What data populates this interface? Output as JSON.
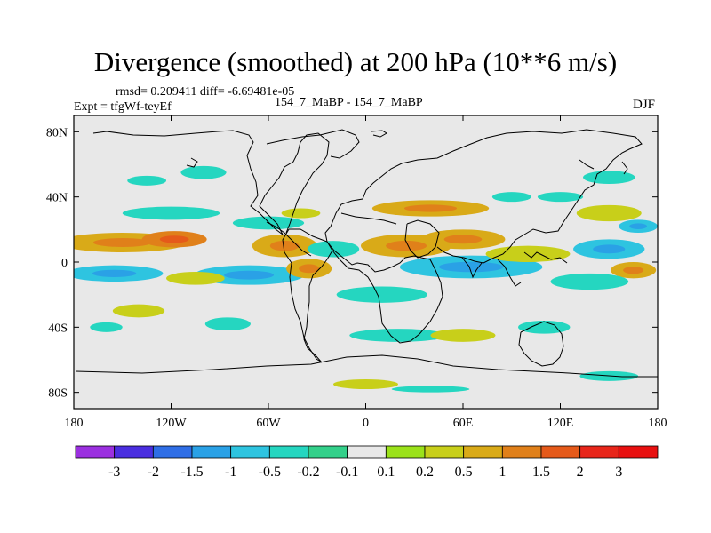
{
  "title": "Divergence (smoothed) at 200 hPa (10**6 m/s)",
  "stats": "rmsd= 0.209411 diff= -6.69481e-05",
  "experiment": "Expt = tfgWf-teyEf",
  "case_label": "154_7_MaBP - 154_7_MaBP",
  "season": "DJF",
  "chart_data": {
    "type": "heatmap",
    "projection": "cylindrical equidistant",
    "x_ticks": [
      {
        "value": -180,
        "label": "180"
      },
      {
        "value": -120,
        "label": "120W"
      },
      {
        "value": -60,
        "label": "60W"
      },
      {
        "value": 0,
        "label": "0"
      },
      {
        "value": 60,
        "label": "60E"
      },
      {
        "value": 120,
        "label": "120E"
      },
      {
        "value": 180,
        "label": "180"
      }
    ],
    "y_ticks": [
      {
        "value": 80,
        "label": "80N"
      },
      {
        "value": 40,
        "label": "40N"
      },
      {
        "value": 0,
        "label": "0"
      },
      {
        "value": -40,
        "label": "40S"
      },
      {
        "value": -80,
        "label": "80S"
      }
    ],
    "xlim": [
      -180,
      180
    ],
    "ylim": [
      -90,
      90
    ],
    "colorbar": {
      "boundaries": [
        "-3",
        "-2",
        "-1.5",
        "-1",
        "-0.5",
        "-0.2",
        "-0.1",
        "0.1",
        "0.2",
        "0.5",
        "1",
        "1.5",
        "2",
        "3"
      ],
      "colors": [
        "#9b30e0",
        "#4a2ee0",
        "#2f6ee6",
        "#2aa1e6",
        "#2ec4e0",
        "#25d6c0",
        "#33d08a",
        "#e8e8e8",
        "#9be21a",
        "#c8cf1a",
        "#d9aa18",
        "#e0801a",
        "#e55a1a",
        "#e8261a",
        "#e81010"
      ]
    },
    "features": [
      {
        "lon": -150,
        "lat": 12,
        "rx": 40,
        "ry": 6,
        "level": 10
      },
      {
        "lon": -118,
        "lat": 14,
        "rx": 20,
        "ry": 5,
        "level": 11
      },
      {
        "lon": -155,
        "lat": -7,
        "rx": 30,
        "ry": 5,
        "level": 4
      },
      {
        "lon": -72,
        "lat": -8,
        "rx": 34,
        "ry": 6,
        "level": 4
      },
      {
        "lon": -50,
        "lat": 10,
        "rx": 20,
        "ry": 7,
        "level": 10
      },
      {
        "lon": -105,
        "lat": -10,
        "rx": 18,
        "ry": 4,
        "level": 9
      },
      {
        "lon": -35,
        "lat": -4,
        "rx": 14,
        "ry": 6,
        "level": 10
      },
      {
        "lon": 25,
        "lat": 10,
        "rx": 28,
        "ry": 7,
        "level": 10
      },
      {
        "lon": 60,
        "lat": 14,
        "rx": 26,
        "ry": 6,
        "level": 10
      },
      {
        "lon": 65,
        "lat": -3,
        "rx": 44,
        "ry": 7,
        "level": 4
      },
      {
        "lon": 10,
        "lat": -20,
        "rx": 28,
        "ry": 5,
        "level": 5
      },
      {
        "lon": -20,
        "lat": 8,
        "rx": 16,
        "ry": 5,
        "level": 5
      },
      {
        "lon": 40,
        "lat": 33,
        "rx": 36,
        "ry": 5,
        "level": 10
      },
      {
        "lon": -60,
        "lat": 24,
        "rx": 22,
        "ry": 4,
        "level": 5
      },
      {
        "lon": -40,
        "lat": 30,
        "rx": 12,
        "ry": 3,
        "level": 9
      },
      {
        "lon": -120,
        "lat": 30,
        "rx": 30,
        "ry": 4,
        "level": 5
      },
      {
        "lon": 100,
        "lat": 5,
        "rx": 26,
        "ry": 5,
        "level": 9
      },
      {
        "lon": 150,
        "lat": 8,
        "rx": 22,
        "ry": 6,
        "level": 4
      },
      {
        "lon": 165,
        "lat": -5,
        "rx": 14,
        "ry": 5,
        "level": 10
      },
      {
        "lon": 150,
        "lat": 30,
        "rx": 20,
        "ry": 5,
        "level": 9
      },
      {
        "lon": 138,
        "lat": -12,
        "rx": 24,
        "ry": 5,
        "level": 5
      },
      {
        "lon": 168,
        "lat": 22,
        "rx": 12,
        "ry": 4,
        "level": 4
      },
      {
        "lon": -100,
        "lat": 55,
        "rx": 14,
        "ry": 4,
        "level": 5
      },
      {
        "lon": -135,
        "lat": 50,
        "rx": 12,
        "ry": 3,
        "level": 5
      },
      {
        "lon": 150,
        "lat": 52,
        "rx": 16,
        "ry": 4,
        "level": 5
      },
      {
        "lon": 90,
        "lat": 40,
        "rx": 12,
        "ry": 3,
        "level": 5
      },
      {
        "lon": 120,
        "lat": 40,
        "rx": 14,
        "ry": 3,
        "level": 5
      },
      {
        "lon": -140,
        "lat": -30,
        "rx": 16,
        "ry": 4,
        "level": 9
      },
      {
        "lon": -85,
        "lat": -38,
        "rx": 14,
        "ry": 4,
        "level": 5
      },
      {
        "lon": 20,
        "lat": -45,
        "rx": 30,
        "ry": 4,
        "level": 5
      },
      {
        "lon": 60,
        "lat": -45,
        "rx": 20,
        "ry": 4,
        "level": 9
      },
      {
        "lon": 110,
        "lat": -40,
        "rx": 16,
        "ry": 4,
        "level": 5
      },
      {
        "lon": 0,
        "lat": -75,
        "rx": 20,
        "ry": 3,
        "level": 9
      },
      {
        "lon": 40,
        "lat": -78,
        "rx": 24,
        "ry": 2,
        "level": 5
      },
      {
        "lon": 150,
        "lat": -70,
        "rx": 18,
        "ry": 3,
        "level": 5
      },
      {
        "lon": -160,
        "lat": -40,
        "rx": 10,
        "ry": 3,
        "level": 5
      }
    ]
  }
}
